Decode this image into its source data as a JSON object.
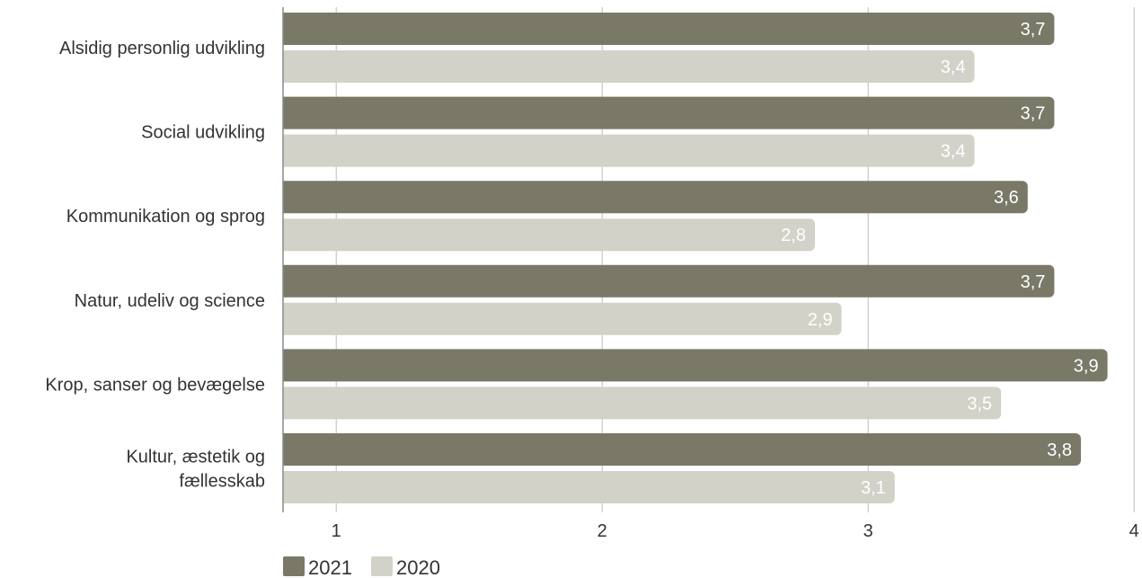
{
  "chart_data": {
    "type": "bar",
    "orientation": "horizontal",
    "categories": [
      [
        "Alsidig personlig udvikling"
      ],
      [
        "Social udvikling"
      ],
      [
        "Kommunikation og sprog"
      ],
      [
        "Natur, udeliv og science"
      ],
      [
        "Krop, sanser og bevægelse"
      ],
      [
        "Kultur, æstetik og",
        "fællesskab"
      ]
    ],
    "series": [
      {
        "name": "2021",
        "color": "#7a7867",
        "values": [
          3.7,
          3.7,
          3.6,
          3.7,
          3.9,
          3.8
        ],
        "labels": [
          "3,7",
          "3,7",
          "3,6",
          "3,7",
          "3,9",
          "3,8"
        ]
      },
      {
        "name": "2020",
        "color": "#d3d2c8",
        "values": [
          3.4,
          3.4,
          2.8,
          2.9,
          3.5,
          3.1
        ],
        "labels": [
          "3,4",
          "3,4",
          "2,8",
          "2,9",
          "3,5",
          "3,1"
        ]
      }
    ],
    "xlim": [
      0.8,
      4
    ],
    "xticks": [
      1,
      2,
      3,
      4
    ],
    "xtick_labels": [
      "1",
      "2",
      "3",
      "4"
    ],
    "grid": true,
    "legend_position": "bottom-left",
    "title": "",
    "xlabel": "",
    "ylabel": ""
  }
}
